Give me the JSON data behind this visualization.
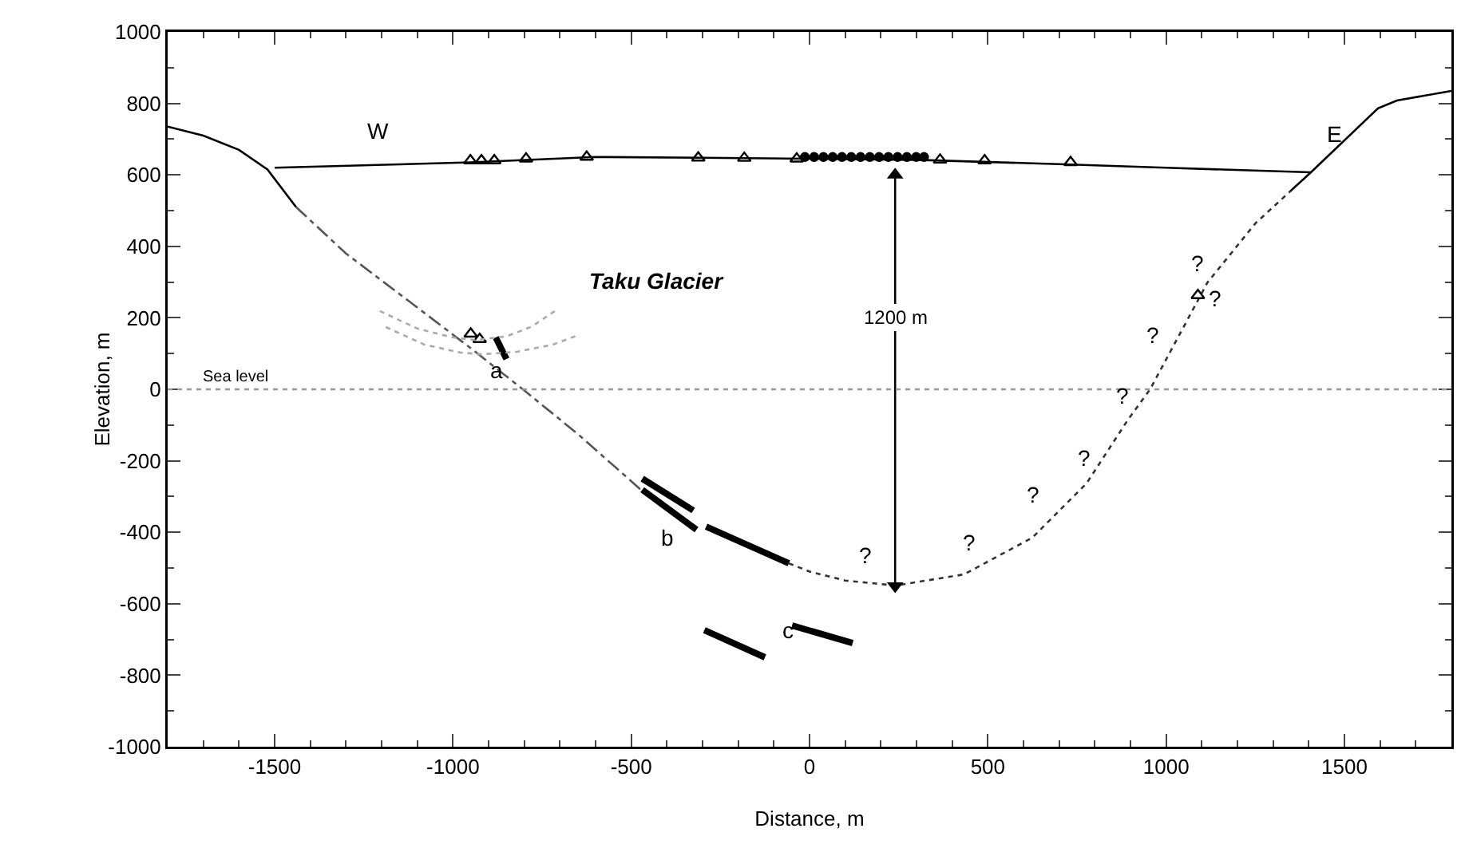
{
  "chart_data": {
    "type": "line",
    "xlabel": "Distance, m",
    "ylabel": "Elevation, m",
    "xlim": [
      -1800,
      1800
    ],
    "xticks": [
      -1500,
      -1000,
      -500,
      0,
      500,
      1000,
      1500
    ],
    "ylim": [
      -1000,
      1000
    ],
    "yticks": [
      -1000,
      -800,
      -600,
      -400,
      -200,
      0,
      200,
      400,
      600,
      800,
      1000
    ],
    "grid": false,
    "series": [
      {
        "color": "#000000",
        "line_style": "solid",
        "x": [
          -1800,
          -1700,
          -1600,
          -1520,
          -1440
        ],
        "values": [
          735,
          710,
          670,
          615,
          510
        ]
      },
      {
        "color": "#555555",
        "line_style": "dashed",
        "x": [
          -1440,
          -1300,
          -1116,
          -950,
          -804,
          -650,
          -473
        ],
        "values": [
          510,
          380,
          241,
          115,
          0,
          -125,
          -281
        ]
      },
      {
        "color": "#000000",
        "line_style": "solid",
        "x": [
          -880,
          -850,
          -700,
          -469,
          -326,
          -400,
          -469,
          -317,
          -300,
          -290,
          -58,
          -200,
          -295,
          -125,
          -90,
          -49,
          121
        ],
        "values": [
          145,
          85,
          null,
          -250,
          -339,
          null,
          -281,
          -393,
          null,
          -384,
          -487,
          null,
          -674,
          -750,
          null,
          -661,
          -710
        ]
      },
      {
        "color": "#333333",
        "line_style": "dotted",
        "x": [
          -58,
          0,
          100,
          241,
          433,
          625,
          777,
          893,
          955,
          1116,
          1250,
          1348
        ],
        "values": [
          -487,
          -510,
          -535,
          -549,
          -518,
          -415,
          -263,
          -85,
          0,
          299,
          464,
          554
        ]
      },
      {
        "color": "#000000",
        "line_style": "solid",
        "x": [
          1348,
          1406,
          1594,
          1647,
          1800
        ],
        "values": [
          554,
          607,
          786,
          808,
          835
        ]
      },
      {
        "color": "#000000",
        "line_style": "solid",
        "x": [
          -1500,
          -950,
          -600,
          -300,
          0,
          300,
          700,
          1000,
          1406
        ],
        "values": [
          620,
          635,
          650,
          648,
          645,
          642,
          630,
          620,
          607
        ]
      },
      {
        "type": "scatter",
        "color": "#000000",
        "marker": "triangle",
        "x": [
          -951,
          -920,
          -884,
          -795,
          -625,
          -312,
          -183,
          -36,
          366,
          491,
          732
        ],
        "values": [
          640,
          640,
          640,
          645,
          650,
          648,
          647,
          645,
          642,
          640,
          635
        ]
      },
      {
        "type": "scatter",
        "color": "#000000",
        "marker": "circle",
        "x": [
          -13,
          13,
          39,
          65,
          91,
          117,
          143,
          169,
          195,
          221,
          247,
          273,
          299,
          321
        ],
        "values": [
          650,
          650,
          650,
          650,
          650,
          650,
          650,
          650,
          650,
          650,
          650,
          650,
          650,
          650
        ]
      },
      {
        "type": "scatter",
        "color": "#000000",
        "marker": "triangle",
        "x": [
          -950,
          -925,
          1089
        ],
        "values": [
          155,
          140,
          263
        ]
      },
      {
        "color": "#aaaaaa",
        "line_style": "dotted",
        "x": [
          -1205,
          -1100,
          -1000,
          -938,
          -850,
          -780,
          -714
        ],
        "values": [
          219,
          170,
          145,
          138,
          148,
          175,
          219
        ]
      },
      {
        "color": "#aaaaaa",
        "line_style": "dotted",
        "x": [
          -1188,
          -1080,
          -980,
          -920,
          -820,
          -720,
          -647
        ],
        "values": [
          174,
          125,
          103,
          98,
          105,
          125,
          152
        ]
      },
      {
        "color": "#000000",
        "line_style": "solid",
        "marker": "triangle",
        "x": [
          240,
          240
        ],
        "values": [
          600,
          -550
        ]
      }
    ],
    "ref_lines": [
      {
        "axis": "y",
        "value": 0,
        "label": "Sea level",
        "color": "#999999",
        "line_style": "dotted"
      }
    ],
    "annotations": [
      "Taku Glacier",
      "1200 m",
      "W",
      "E",
      "a",
      "b",
      "c",
      "?",
      "?",
      "?",
      "?",
      "?",
      "?",
      "?",
      "?"
    ]
  }
}
